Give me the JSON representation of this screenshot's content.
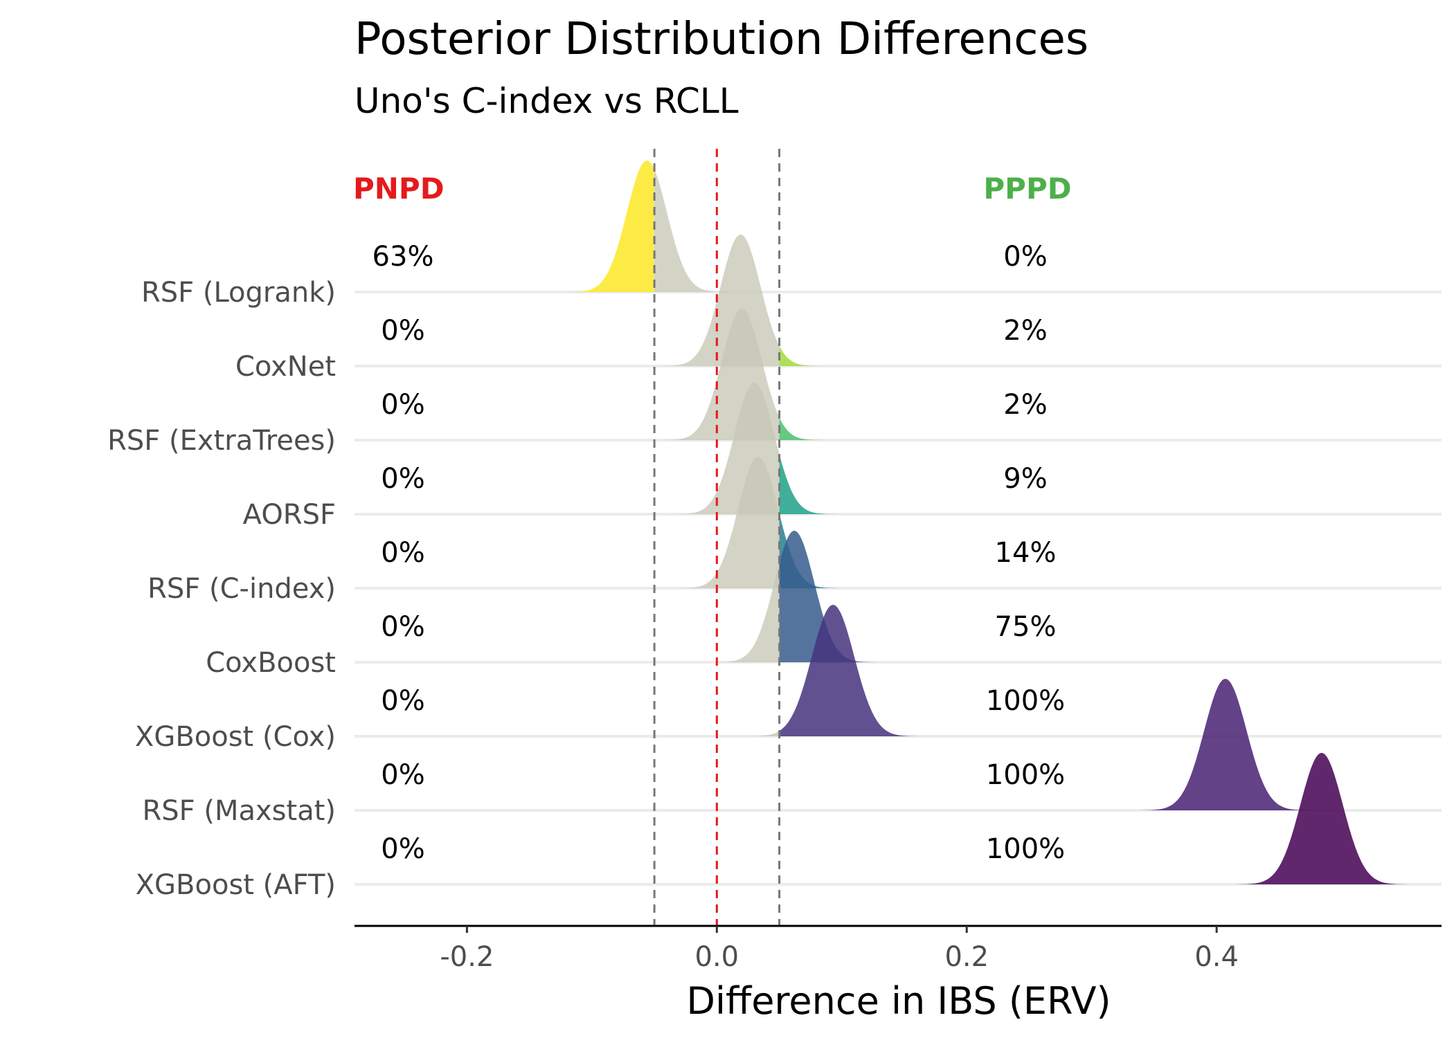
{
  "chart_data": {
    "type": "ridgeline",
    "title": "Posterior Distribution Differences",
    "subtitle": "Uno's C-index vs RCLL",
    "xlabel": "Difference in IBS (ERV)",
    "xlim": [
      -0.29,
      0.58
    ],
    "x_ticks": [
      -0.2,
      0.0,
      0.2,
      0.4
    ],
    "x_tick_labels": [
      "-0.2",
      "0.0",
      "0.2",
      "0.4"
    ],
    "rope": [
      -0.05,
      0.05
    ],
    "zero_line": 0.0,
    "column_headers": {
      "left": "PNPD",
      "right": "PPPD"
    },
    "colors": {
      "pnpd": "#e41a1c",
      "pppd": "#4daf4a",
      "rope_fill": "#c8c8b8",
      "zero_line": "#e41a1c",
      "rope_line": "#777777"
    },
    "series": [
      {
        "name": "RSF (Logrank)",
        "mean": -0.056,
        "sd": 0.016,
        "pnpd": "63%",
        "pppd": "0%",
        "color": "#fde725"
      },
      {
        "name": "CoxNet",
        "mean": 0.019,
        "sd": 0.016,
        "pnpd": "0%",
        "pppd": "2%",
        "color": "#a0da39"
      },
      {
        "name": "RSF (ExtraTrees)",
        "mean": 0.02,
        "sd": 0.016,
        "pnpd": "0%",
        "pppd": "2%",
        "color": "#4ac16d"
      },
      {
        "name": "AORSF",
        "mean": 0.03,
        "sd": 0.016,
        "pnpd": "0%",
        "pppd": "9%",
        "color": "#1fa187"
      },
      {
        "name": "RSF (C-index)",
        "mean": 0.033,
        "sd": 0.016,
        "pnpd": "0%",
        "pppd": "14%",
        "color": "#277f8e"
      },
      {
        "name": "CoxBoost",
        "mean": 0.062,
        "sd": 0.016,
        "pnpd": "0%",
        "pppd": "75%",
        "color": "#365c8d"
      },
      {
        "name": "XGBoost (Cox)",
        "mean": 0.093,
        "sd": 0.017,
        "pnpd": "0%",
        "pppd": "100%",
        "color": "#46337e"
      },
      {
        "name": "RSF (Maxstat)",
        "mean": 0.407,
        "sd": 0.017,
        "pnpd": "0%",
        "pppd": "100%",
        "color": "#482173"
      },
      {
        "name": "XGBoost (AFT)",
        "mean": 0.484,
        "sd": 0.017,
        "pnpd": "0%",
        "pppd": "100%",
        "color": "#440154"
      }
    ]
  }
}
